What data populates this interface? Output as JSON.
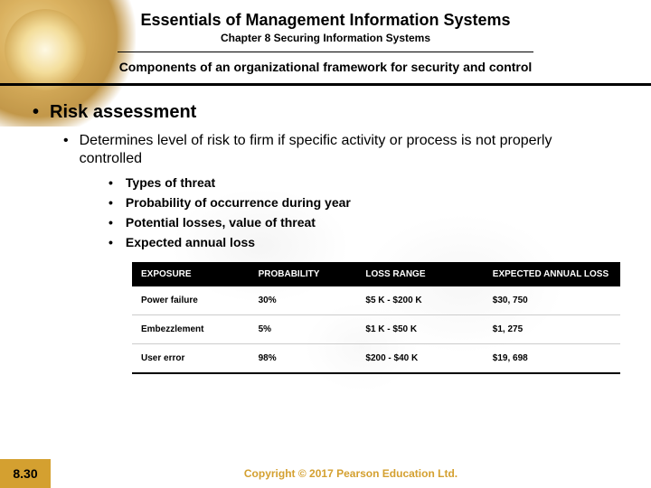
{
  "header": {
    "title": "Essentials of Management Information Systems",
    "chapter": "Chapter 8 Securing Information Systems",
    "subtitle": "Components of an organizational framework for security and control"
  },
  "bullets": {
    "l1": "Risk assessment",
    "l2": "Determines level of risk to firm if specific activity or process is not properly controlled",
    "l3": [
      "Types of threat",
      "Probability of occurrence during year",
      "Potential losses, value of threat",
      "Expected annual loss"
    ]
  },
  "table": {
    "columns": [
      "EXPOSURE",
      "PROBABILITY",
      "LOSS RANGE",
      "EXPECTED ANNUAL LOSS"
    ],
    "col_widths": [
      "24%",
      "22%",
      "26%",
      "28%"
    ],
    "header_bg": "#000000",
    "header_color": "#ffffff",
    "row_border": "#cccccc",
    "bottom_border": "#000000",
    "font_size": 10,
    "rows": [
      [
        "Power failure",
        "30%",
        "$5 K - $200 K",
        "$30, 750"
      ],
      [
        "Embezzlement",
        "5%",
        "$1 K - $50 K",
        "$1, 275"
      ],
      [
        "User error",
        "98%",
        "$200 - $40 K",
        "$19, 698"
      ]
    ]
  },
  "footer": {
    "slide_number": "8.30",
    "slide_bg": "#d4a030",
    "copyright": "Copyright © 2017 Pearson Education Ltd.",
    "copyright_color": "#d4a030"
  },
  "colors": {
    "background": "#ffffff",
    "text": "#000000",
    "globe_gradient": [
      "#fef8e0",
      "#f2d88a",
      "#cfa040",
      "#b8862a"
    ]
  }
}
